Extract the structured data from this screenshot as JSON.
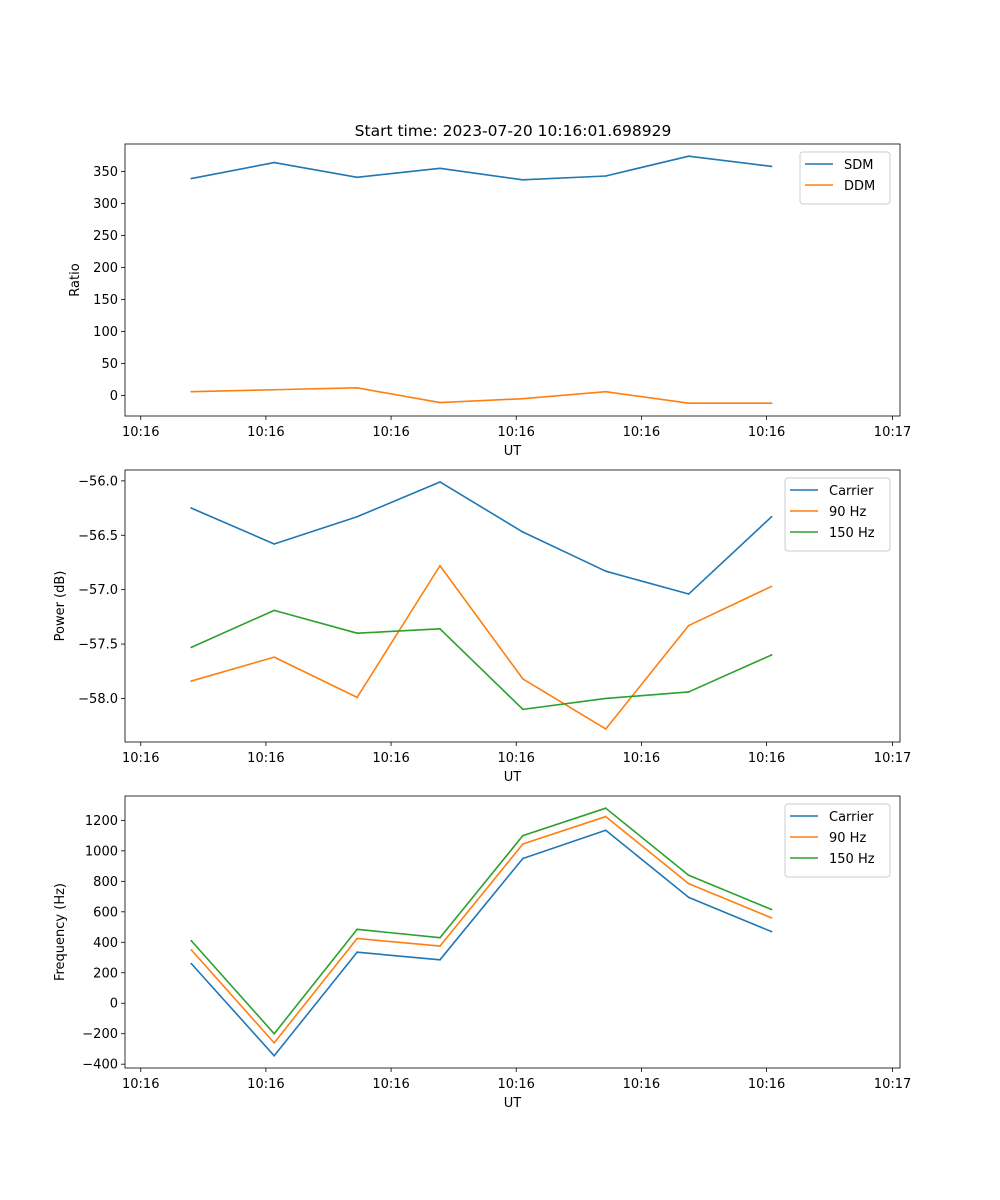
{
  "figure": {
    "title": "Start time: 2023-07-20 10:16:01.698929"
  },
  "colors": {
    "blue": "#1f77b4",
    "orange": "#ff7f0e",
    "green": "#2ca02c"
  },
  "chart_data": [
    {
      "type": "line",
      "title": "Start time: 2023-07-20 10:16:01.698929",
      "xlabel": "UT",
      "ylabel": "Ratio",
      "x": [
        1,
        2,
        3,
        4,
        5,
        6,
        7,
        8
      ],
      "xlim": [
        0.2,
        9.55
      ],
      "xticks": [
        0.39,
        1.9,
        3.41,
        4.92,
        6.43,
        7.94,
        9.46
      ],
      "xticklabels": [
        "10:16",
        "10:16",
        "10:16",
        "10:16",
        "10:16",
        "10:16",
        "10:17"
      ],
      "ylim": [
        -32,
        393
      ],
      "yticks": [
        0,
        50,
        100,
        150,
        200,
        250,
        300,
        350
      ],
      "yticklabels": [
        "0",
        "50",
        "100",
        "150",
        "200",
        "250",
        "300",
        "350"
      ],
      "legend": "top-right",
      "series": [
        {
          "name": "SDM",
          "color": "#1f77b4",
          "values": [
            339,
            364,
            341,
            355,
            337,
            343,
            374,
            358
          ]
        },
        {
          "name": "DDM",
          "color": "#ff7f0e",
          "values": [
            6,
            9,
            12,
            -11,
            -5,
            6,
            -12,
            -12
          ]
        }
      ]
    },
    {
      "type": "line",
      "title": "",
      "xlabel": "UT",
      "ylabel": "Power (dB)",
      "x": [
        1,
        2,
        3,
        4,
        5,
        6,
        7,
        8
      ],
      "xlim": [
        0.2,
        9.55
      ],
      "xticks": [
        0.39,
        1.9,
        3.41,
        4.92,
        6.43,
        7.94,
        9.46
      ],
      "xticklabels": [
        "10:16",
        "10:16",
        "10:16",
        "10:16",
        "10:16",
        "10:16",
        "10:17"
      ],
      "ylim": [
        -58.4,
        -55.9
      ],
      "yticks": [
        -58.0,
        -57.5,
        -57.0,
        -56.5,
        -56.0
      ],
      "yticklabels": [
        "−58.0",
        "−57.5",
        "−57.0",
        "−56.5",
        "−56.0"
      ],
      "legend": "top-right",
      "series": [
        {
          "name": "Carrier",
          "color": "#1f77b4",
          "values": [
            -56.25,
            -56.58,
            -56.33,
            -56.01,
            -56.47,
            -56.83,
            -57.04,
            -56.33
          ]
        },
        {
          "name": "90 Hz",
          "color": "#ff7f0e",
          "values": [
            -57.84,
            -57.62,
            -57.99,
            -56.78,
            -57.82,
            -58.28,
            -57.33,
            -56.97
          ]
        },
        {
          "name": "150 Hz",
          "color": "#2ca02c",
          "values": [
            -57.53,
            -57.19,
            -57.4,
            -57.36,
            -58.1,
            -58.0,
            -57.94,
            -57.6
          ]
        }
      ]
    },
    {
      "type": "line",
      "title": "",
      "xlabel": "UT",
      "ylabel": "Frequency (Hz)",
      "x": [
        1,
        2,
        3,
        4,
        5,
        6,
        7,
        8
      ],
      "xlim": [
        0.2,
        9.55
      ],
      "xticks": [
        0.39,
        1.9,
        3.41,
        4.92,
        6.43,
        7.94,
        9.46
      ],
      "xticklabels": [
        "10:16",
        "10:16",
        "10:16",
        "10:16",
        "10:16",
        "10:16",
        "10:17"
      ],
      "ylim": [
        -425,
        1360
      ],
      "yticks": [
        -400,
        -200,
        0,
        200,
        400,
        600,
        800,
        1000,
        1200
      ],
      "yticklabels": [
        "−400",
        "−200",
        "0",
        "200",
        "400",
        "600",
        "800",
        "1000",
        "1200"
      ],
      "legend": "top-right",
      "series": [
        {
          "name": "Carrier",
          "color": "#1f77b4",
          "values": [
            260,
            -345,
            335,
            285,
            950,
            1135,
            695,
            470
          ]
        },
        {
          "name": "90 Hz",
          "color": "#ff7f0e",
          "values": [
            350,
            -260,
            425,
            375,
            1045,
            1225,
            785,
            560
          ]
        },
        {
          "name": "150 Hz",
          "color": "#2ca02c",
          "values": [
            410,
            -200,
            485,
            430,
            1100,
            1280,
            840,
            615
          ]
        }
      ]
    }
  ]
}
